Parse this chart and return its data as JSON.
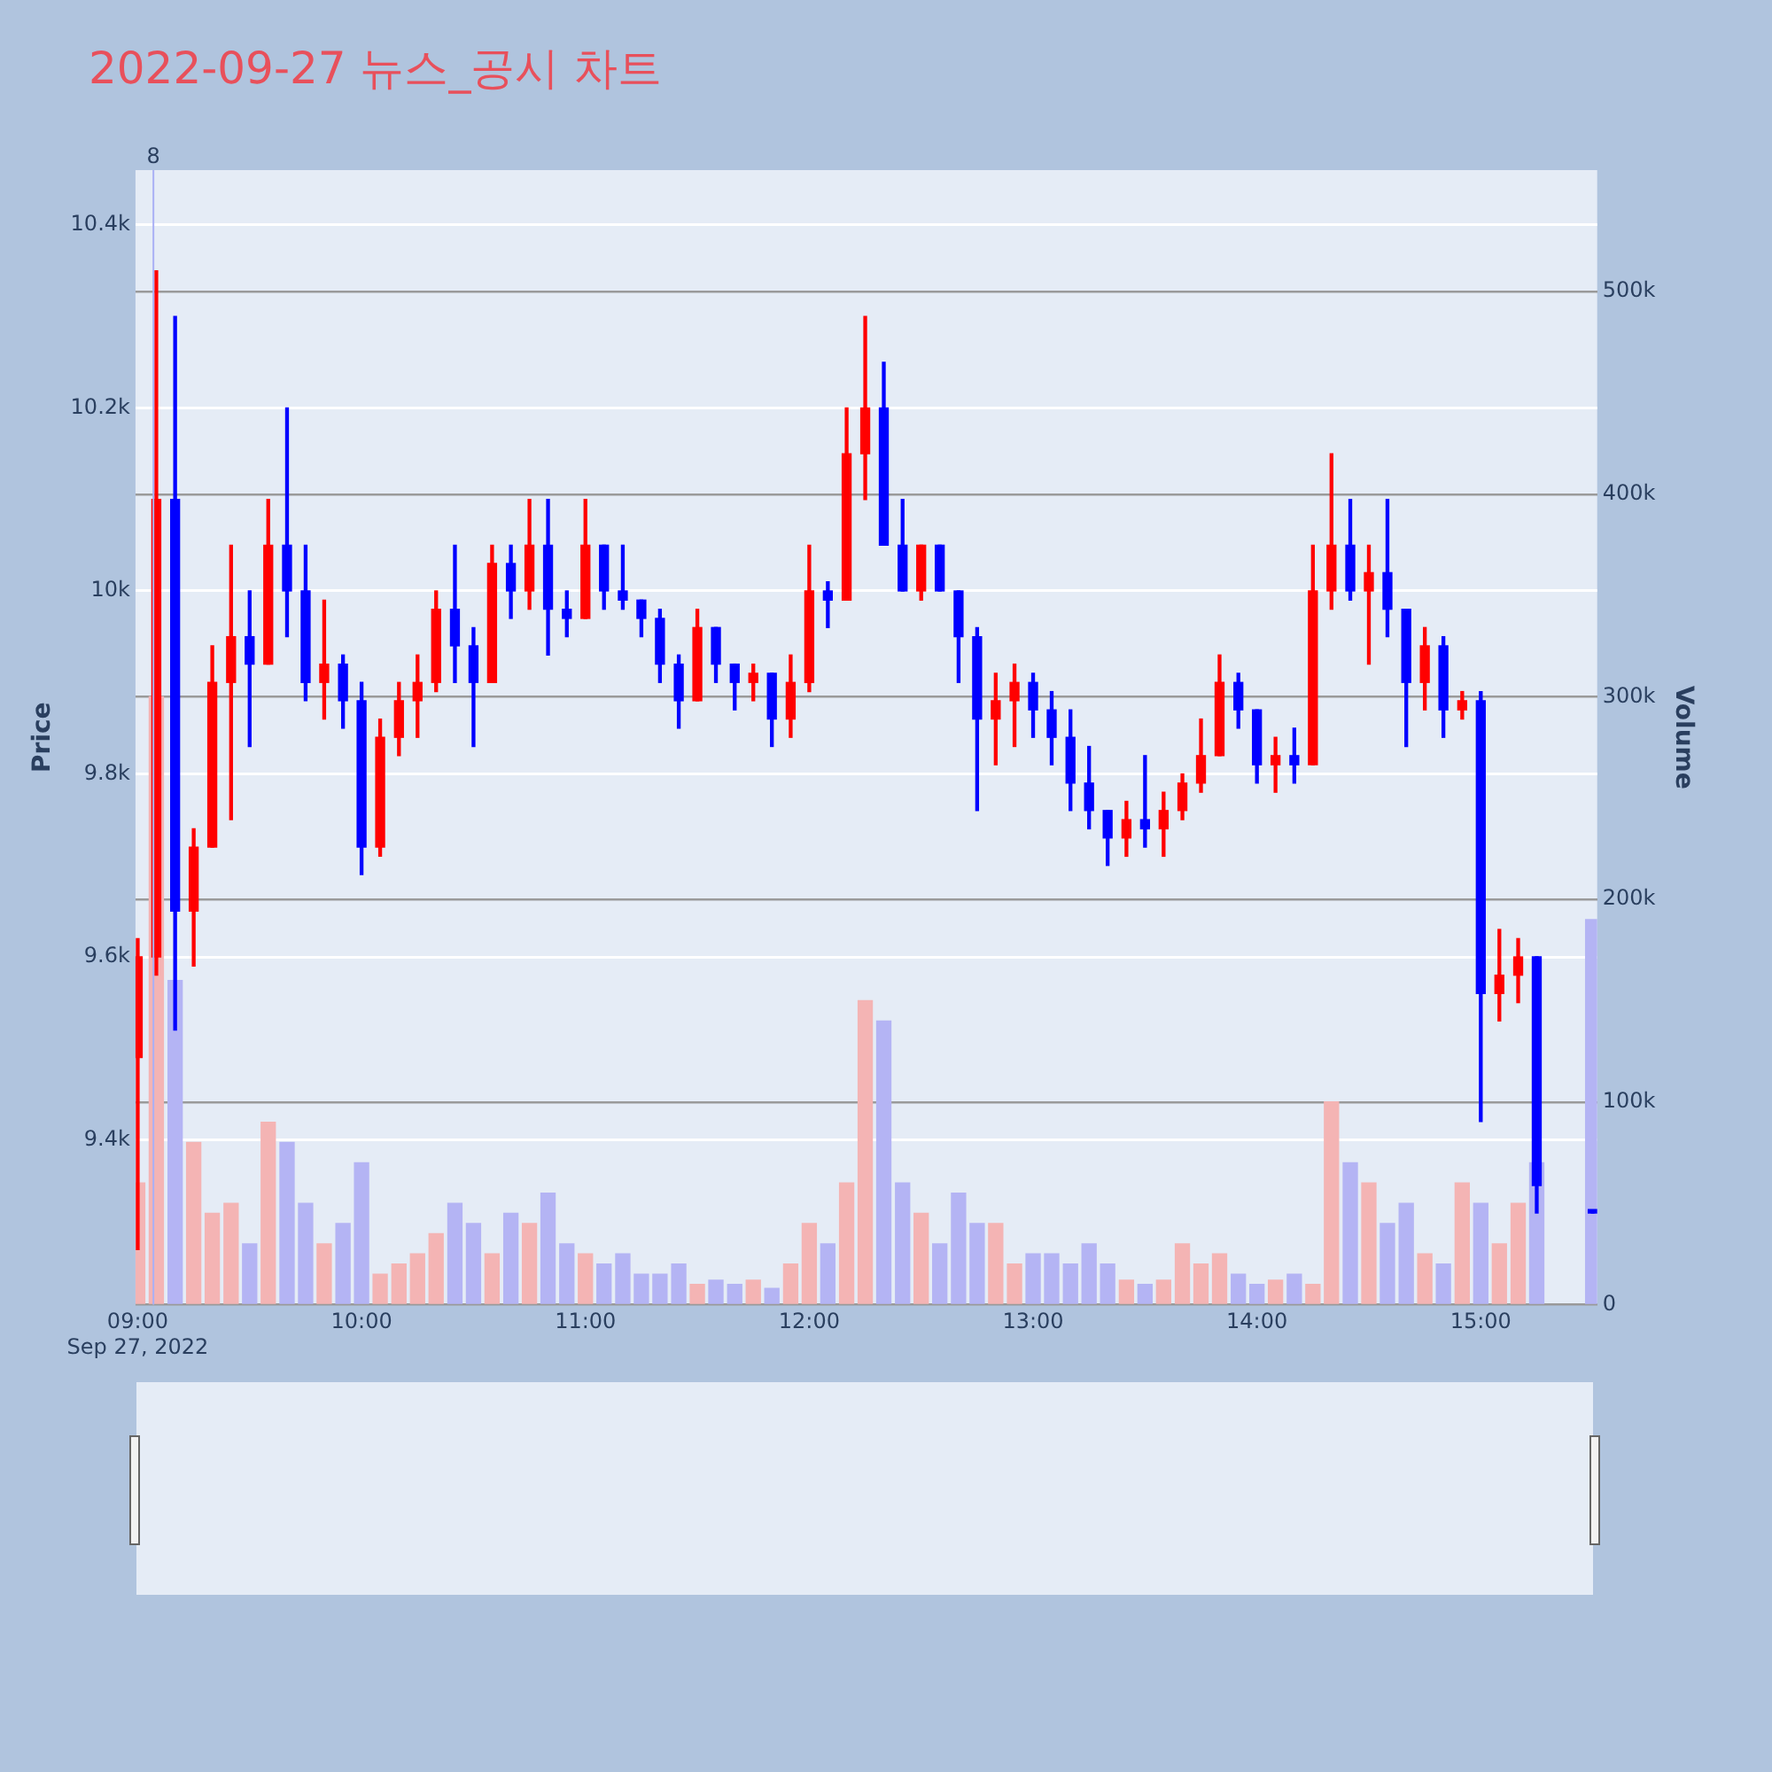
{
  "chart_data": {
    "type": "candlestick",
    "title": "2022-09-27 뉴스_공시 차트",
    "ylabel": "Price",
    "y2label": "Volume",
    "grid": "y",
    "legend": false,
    "xlim": [
      8.99,
      15.52
    ],
    "xticks": [
      {
        "value": 9,
        "label": "09:00\nSep 27, 2022"
      },
      {
        "value": 10,
        "label": "10:00"
      },
      {
        "value": 11,
        "label": "11:00"
      },
      {
        "value": 12,
        "label": "12:00"
      },
      {
        "value": 13,
        "label": "13:00"
      },
      {
        "value": 14,
        "label": "14:00"
      },
      {
        "value": 15,
        "label": "15:00"
      }
    ],
    "ylim": [
      9220,
      10460
    ],
    "yticks": [
      {
        "value": 9400,
        "label": "9.4k"
      },
      {
        "value": 9600,
        "label": "9.6k"
      },
      {
        "value": 9800,
        "label": "9.8k"
      },
      {
        "value": 10000,
        "label": "10k"
      },
      {
        "value": 10200,
        "label": "10.2k"
      },
      {
        "value": 10400,
        "label": "10.4k"
      }
    ],
    "y2lim": [
      0,
      560000
    ],
    "y2ticks": [
      0,
      {
        "value": 100000,
        "label": "100k"
      },
      {
        "value": 200000,
        "label": "200k"
      },
      {
        "value": 300000,
        "label": "300k"
      },
      {
        "value": 400000,
        "label": "400k"
      },
      {
        "value": 500000,
        "label": "500k"
      }
    ],
    "ref_lines": [
      {
        "axis": "x",
        "value": 9.07,
        "color": "#aab0f5"
      }
    ],
    "annotations": [
      {
        "text": "8",
        "x": 9.07,
        "y": 10460
      }
    ],
    "series": [
      {
        "type": "candlestick",
        "x": [
          9,
          9.083,
          9.167,
          9.25,
          9.333,
          9.417,
          9.5,
          9.583,
          9.667,
          9.75,
          9.833,
          9.917,
          10,
          10.083,
          10.167,
          10.25,
          10.333,
          10.417,
          10.5,
          10.583,
          10.667,
          10.75,
          10.833,
          10.917,
          11,
          11.083,
          11.167,
          11.25,
          11.333,
          11.417,
          11.5,
          11.583,
          11.667,
          11.75,
          11.833,
          11.917,
          12,
          12.083,
          12.167,
          12.25,
          12.333,
          12.417,
          12.5,
          12.583,
          12.667,
          12.75,
          12.833,
          12.917,
          13,
          13.083,
          13.167,
          13.25,
          13.333,
          13.417,
          13.5,
          13.583,
          13.667,
          13.75,
          13.833,
          13.917,
          14,
          14.083,
          14.167,
          14.25,
          14.333,
          14.417,
          14.5,
          14.583,
          14.667,
          14.75,
          14.833,
          14.917,
          15,
          15.083,
          15.167,
          15.25,
          15.5
        ],
        "ohlc": [
          [
            9490,
            9620,
            9280,
            9600
          ],
          [
            9600,
            10350,
            9580,
            10100
          ],
          [
            10100,
            10300,
            9520,
            9650
          ],
          [
            9650,
            9740,
            9590,
            9720
          ],
          [
            9720,
            9940,
            9720,
            9900
          ],
          [
            9900,
            10050,
            9750,
            9950
          ],
          [
            9950,
            10000,
            9830,
            9920
          ],
          [
            9920,
            10100,
            9920,
            10050
          ],
          [
            10050,
            10200,
            9950,
            10000
          ],
          [
            10000,
            10050,
            9880,
            9900
          ],
          [
            9900,
            9990,
            9860,
            9920
          ],
          [
            9920,
            9930,
            9850,
            9880
          ],
          [
            9880,
            9900,
            9690,
            9720
          ],
          [
            9720,
            9860,
            9710,
            9840
          ],
          [
            9840,
            9900,
            9820,
            9880
          ],
          [
            9880,
            9930,
            9840,
            9900
          ],
          [
            9900,
            10000,
            9890,
            9980
          ],
          [
            9980,
            10050,
            9900,
            9940
          ],
          [
            9940,
            9960,
            9830,
            9900
          ],
          [
            9900,
            10050,
            9900,
            10030
          ],
          [
            10030,
            10050,
            9970,
            10000
          ],
          [
            10000,
            10100,
            9980,
            10050
          ],
          [
            10050,
            10100,
            9930,
            9980
          ],
          [
            9980,
            10000,
            9950,
            9970
          ],
          [
            9970,
            10100,
            9970,
            10050
          ],
          [
            10050,
            10050,
            9980,
            10000
          ],
          [
            10000,
            10050,
            9980,
            9990
          ],
          [
            9990,
            9990,
            9950,
            9970
          ],
          [
            9970,
            9980,
            9900,
            9920
          ],
          [
            9920,
            9930,
            9850,
            9880
          ],
          [
            9880,
            9980,
            9880,
            9960
          ],
          [
            9960,
            9960,
            9900,
            9920
          ],
          [
            9920,
            9920,
            9870,
            9900
          ],
          [
            9900,
            9920,
            9880,
            9910
          ],
          [
            9910,
            9910,
            9830,
            9860
          ],
          [
            9860,
            9930,
            9840,
            9900
          ],
          [
            9900,
            10050,
            9890,
            10000
          ],
          [
            10000,
            10010,
            9960,
            9990
          ],
          [
            9990,
            10200,
            9990,
            10150
          ],
          [
            10150,
            10300,
            10100,
            10200
          ],
          [
            10200,
            10250,
            10050,
            10050
          ],
          [
            10050,
            10100,
            10000,
            10000
          ],
          [
            10000,
            10050,
            9990,
            10050
          ],
          [
            10050,
            10050,
            10000,
            10000
          ],
          [
            10000,
            10000,
            9900,
            9950
          ],
          [
            9950,
            9960,
            9760,
            9860
          ],
          [
            9860,
            9910,
            9810,
            9880
          ],
          [
            9880,
            9920,
            9830,
            9900
          ],
          [
            9900,
            9910,
            9840,
            9870
          ],
          [
            9870,
            9890,
            9810,
            9840
          ],
          [
            9840,
            9870,
            9760,
            9790
          ],
          [
            9790,
            9830,
            9740,
            9760
          ],
          [
            9760,
            9760,
            9700,
            9730
          ],
          [
            9730,
            9770,
            9710,
            9750
          ],
          [
            9750,
            9820,
            9720,
            9740
          ],
          [
            9740,
            9780,
            9710,
            9760
          ],
          [
            9760,
            9800,
            9750,
            9790
          ],
          [
            9790,
            9860,
            9780,
            9820
          ],
          [
            9820,
            9930,
            9820,
            9900
          ],
          [
            9900,
            9910,
            9850,
            9870
          ],
          [
            9870,
            9870,
            9790,
            9810
          ],
          [
            9810,
            9840,
            9780,
            9820
          ],
          [
            9820,
            9850,
            9790,
            9810
          ],
          [
            9810,
            10050,
            9810,
            10000
          ],
          [
            10000,
            10150,
            9980,
            10050
          ],
          [
            10050,
            10100,
            9990,
            10000
          ],
          [
            10000,
            10050,
            9920,
            10020
          ],
          [
            10020,
            10100,
            9950,
            9980
          ],
          [
            9980,
            9980,
            9830,
            9900
          ],
          [
            9900,
            9960,
            9870,
            9940
          ],
          [
            9940,
            9950,
            9840,
            9870
          ],
          [
            9870,
            9890,
            9860,
            9880
          ],
          [
            9880,
            9890,
            9420,
            9560
          ],
          [
            9560,
            9630,
            9530,
            9580
          ],
          [
            9580,
            9620,
            9550,
            9600
          ],
          [
            9600,
            9600,
            9320,
            9350
          ],
          [
            9320,
            9320,
            9320,
            9320
          ]
        ],
        "colors": [
          "#ff0000",
          "#ff0000",
          "#0000ff",
          "#ff0000",
          "#ff0000",
          "#ff0000",
          "#0000ff",
          "#ff0000",
          "#0000ff",
          "#0000ff",
          "#ff0000",
          "#0000ff",
          "#0000ff",
          "#ff0000",
          "#ff0000",
          "#ff0000",
          "#ff0000",
          "#0000ff",
          "#0000ff",
          "#ff0000",
          "#0000ff",
          "#ff0000",
          "#0000ff",
          "#0000ff",
          "#ff0000",
          "#0000ff",
          "#0000ff",
          "#0000ff",
          "#0000ff",
          "#0000ff",
          "#ff0000",
          "#0000ff",
          "#0000ff",
          "#ff0000",
          "#0000ff",
          "#ff0000",
          "#ff0000",
          "#0000ff",
          "#ff0000",
          "#ff0000",
          "#0000ff",
          "#0000ff",
          "#ff0000",
          "#0000ff",
          "#0000ff",
          "#0000ff",
          "#ff0000",
          "#ff0000",
          "#0000ff",
          "#0000ff",
          "#0000ff",
          "#0000ff",
          "#0000ff",
          "#ff0000",
          "#0000ff",
          "#ff0000",
          "#ff0000",
          "#ff0000",
          "#ff0000",
          "#0000ff",
          "#0000ff",
          "#ff0000",
          "#0000ff",
          "#ff0000",
          "#ff0000",
          "#0000ff",
          "#ff0000",
          "#0000ff",
          "#0000ff",
          "#ff0000",
          "#0000ff",
          "#ff0000",
          "#0000ff",
          "#ff0000",
          "#ff0000",
          "#0000ff",
          "#0000ff"
        ]
      },
      {
        "type": "bar",
        "axis": "y2",
        "x": [
          9,
          9.083,
          9.167,
          9.25,
          9.333,
          9.417,
          9.5,
          9.583,
          9.667,
          9.75,
          9.833,
          9.917,
          10,
          10.083,
          10.167,
          10.25,
          10.333,
          10.417,
          10.5,
          10.583,
          10.667,
          10.75,
          10.833,
          10.917,
          11,
          11.083,
          11.167,
          11.25,
          11.333,
          11.417,
          11.5,
          11.583,
          11.667,
          11.75,
          11.833,
          11.917,
          12,
          12.083,
          12.167,
          12.25,
          12.333,
          12.417,
          12.5,
          12.583,
          12.667,
          12.75,
          12.833,
          12.917,
          13,
          13.083,
          13.167,
          13.25,
          13.333,
          13.417,
          13.5,
          13.583,
          13.667,
          13.75,
          13.833,
          13.917,
          14,
          14.083,
          14.167,
          14.25,
          14.333,
          14.417,
          14.5,
          14.583,
          14.667,
          14.75,
          14.833,
          14.917,
          15,
          15.083,
          15.167,
          15.25,
          15.5
        ],
        "values": [
          60000,
          300000,
          160000,
          80000,
          45000,
          50000,
          30000,
          90000,
          80000,
          50000,
          30000,
          40000,
          70000,
          15000,
          20000,
          25000,
          35000,
          50000,
          40000,
          25000,
          45000,
          40000,
          55000,
          30000,
          25000,
          20000,
          25000,
          15000,
          15000,
          20000,
          10000,
          12000,
          10000,
          12000,
          8000,
          20000,
          40000,
          30000,
          60000,
          150000,
          140000,
          60000,
          45000,
          30000,
          55000,
          40000,
          40000,
          20000,
          25000,
          25000,
          20000,
          30000,
          20000,
          12000,
          10000,
          12000,
          30000,
          20000,
          25000,
          15000,
          10000,
          12000,
          15000,
          10000,
          100000,
          70000,
          60000,
          40000,
          50000,
          25000,
          20000,
          60000,
          50000,
          30000,
          50000,
          70000,
          190000
        ],
        "colors": [
          "#f4b4b4",
          "#f4b4b4",
          "#b4b4f4",
          "#f4b4b4",
          "#f4b4b4",
          "#f4b4b4",
          "#b4b4f4",
          "#f4b4b4",
          "#b4b4f4",
          "#b4b4f4",
          "#f4b4b4",
          "#b4b4f4",
          "#b4b4f4",
          "#f4b4b4",
          "#f4b4b4",
          "#f4b4b4",
          "#f4b4b4",
          "#b4b4f4",
          "#b4b4f4",
          "#f4b4b4",
          "#b4b4f4",
          "#f4b4b4",
          "#b4b4f4",
          "#b4b4f4",
          "#f4b4b4",
          "#b4b4f4",
          "#b4b4f4",
          "#b4b4f4",
          "#b4b4f4",
          "#b4b4f4",
          "#f4b4b4",
          "#b4b4f4",
          "#b4b4f4",
          "#f4b4b4",
          "#b4b4f4",
          "#f4b4b4",
          "#f4b4b4",
          "#b4b4f4",
          "#f4b4b4",
          "#f4b4b4",
          "#b4b4f4",
          "#b4b4f4",
          "#f4b4b4",
          "#b4b4f4",
          "#b4b4f4",
          "#b4b4f4",
          "#f4b4b4",
          "#f4b4b4",
          "#b4b4f4",
          "#b4b4f4",
          "#b4b4f4",
          "#b4b4f4",
          "#b4b4f4",
          "#f4b4b4",
          "#b4b4f4",
          "#f4b4b4",
          "#f4b4b4",
          "#f4b4b4",
          "#f4b4b4",
          "#b4b4f4",
          "#b4b4f4",
          "#f4b4b4",
          "#b4b4f4",
          "#f4b4b4",
          "#f4b4b4",
          "#b4b4f4",
          "#f4b4b4",
          "#b4b4f4",
          "#b4b4f4",
          "#f4b4b4",
          "#b4b4f4",
          "#f4b4b4",
          "#b4b4f4",
          "#f4b4b4",
          "#f4b4b4",
          "#b4b4f4",
          "#b4b4f4"
        ]
      }
    ]
  }
}
